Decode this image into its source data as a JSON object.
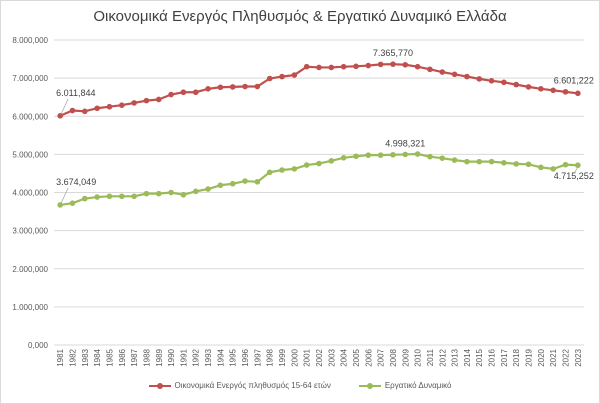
{
  "chart_data": {
    "type": "line",
    "title": "Οικονομικά Ενεργός Πληθυσμός & Εργατικό Δυναμικό Ελλάδα",
    "xlabel": "",
    "ylabel": "",
    "ylim": [
      0,
      8000000
    ],
    "yticks": [
      "0,000",
      "1.000,000",
      "2.000,000",
      "3.000,000",
      "4.000,000",
      "5.000,000",
      "6.000,000",
      "7.000,000",
      "8.000,000"
    ],
    "grid": true,
    "legend": "bottom",
    "categories": [
      "1981",
      "1982",
      "1983",
      "1984",
      "1985",
      "1986",
      "1987",
      "1988",
      "1989",
      "1990",
      "1991",
      "1992",
      "1993",
      "1994",
      "1995",
      "1996",
      "1997",
      "1998",
      "1999",
      "2000",
      "2001",
      "2002",
      "2003",
      "2004",
      "2005",
      "2006",
      "2007",
      "2008",
      "2009",
      "2010",
      "2011",
      "2012",
      "2013",
      "2014",
      "2015",
      "2016",
      "2017",
      "2018",
      "2019",
      "2020",
      "2021",
      "2022",
      "2023"
    ],
    "series": [
      {
        "name": "Οικονομικά Ενεργός πληθυσμός 15-64 ετών",
        "color": "#c0504d",
        "values": [
          6011844,
          6150000,
          6130000,
          6210000,
          6250000,
          6290000,
          6350000,
          6410000,
          6440000,
          6570000,
          6630000,
          6630000,
          6720000,
          6760000,
          6770000,
          6780000,
          6780000,
          6990000,
          7040000,
          7080000,
          7300000,
          7280000,
          7280000,
          7300000,
          7310000,
          7330000,
          7360000,
          7365770,
          7350000,
          7300000,
          7230000,
          7160000,
          7100000,
          7040000,
          6980000,
          6930000,
          6890000,
          6830000,
          6770000,
          6720000,
          6680000,
          6640000,
          6601222
        ],
        "labels": [
          {
            "year": "1981",
            "text": "6.011,844"
          },
          {
            "year": "2008",
            "text": "7.365,770"
          },
          {
            "year": "2023",
            "text": "6.601,222"
          }
        ]
      },
      {
        "name": "Εργατικό Δυναμικό",
        "color": "#9bbb59",
        "values": [
          3674049,
          3720000,
          3840000,
          3880000,
          3900000,
          3900000,
          3900000,
          3970000,
          3970000,
          4000000,
          3940000,
          4030000,
          4090000,
          4190000,
          4230000,
          4300000,
          4280000,
          4530000,
          4590000,
          4620000,
          4720000,
          4760000,
          4830000,
          4910000,
          4950000,
          4980000,
          4980000,
          4990000,
          4998321,
          5010000,
          4940000,
          4900000,
          4850000,
          4810000,
          4810000,
          4810000,
          4780000,
          4750000,
          4740000,
          4660000,
          4620000,
          4730000,
          4715252
        ],
        "labels": [
          {
            "year": "1981",
            "text": "3.674,049"
          },
          {
            "year": "2009",
            "text": "4.998,321"
          },
          {
            "year": "2023",
            "text": "4.715,252"
          }
        ]
      }
    ]
  }
}
